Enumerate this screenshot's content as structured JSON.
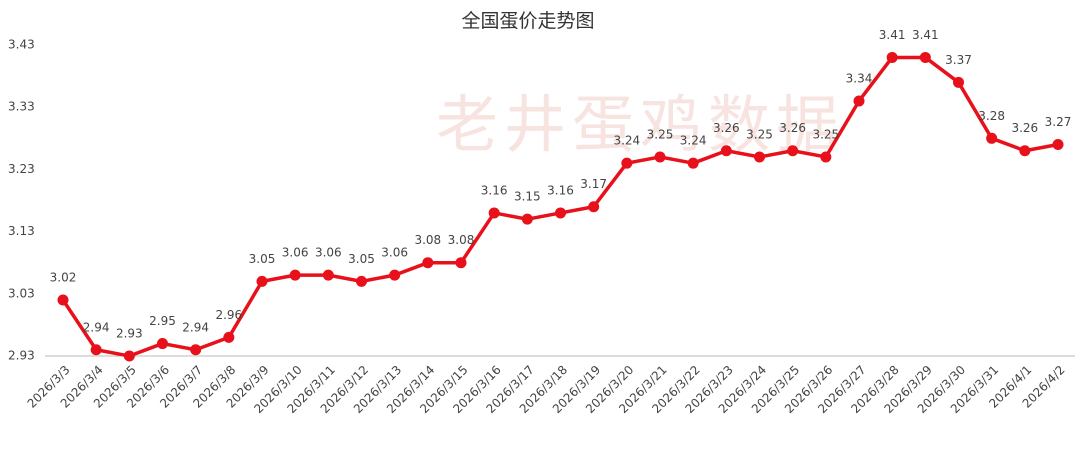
{
  "chart_data": {
    "type": "line",
    "title": "全国蛋价走势图",
    "watermark": "老井蛋鸡数据",
    "categories": [
      "2026/3/3",
      "2026/3/4",
      "2026/3/5",
      "2026/3/6",
      "2026/3/7",
      "2026/3/8",
      "2026/3/9",
      "2026/3/10",
      "2026/3/11",
      "2026/3/12",
      "2026/3/13",
      "2026/3/14",
      "2026/3/15",
      "2026/3/16",
      "2026/3/17",
      "2026/3/18",
      "2026/3/19",
      "2026/3/20",
      "2026/3/21",
      "2026/3/22",
      "2026/3/23",
      "2026/3/24",
      "2026/3/25",
      "2026/3/26",
      "2026/3/27",
      "2026/3/28",
      "2026/3/29",
      "2026/3/30",
      "2026/3/31",
      "2026/4/1",
      "2026/4/2"
    ],
    "values": [
      3.02,
      2.94,
      2.93,
      2.95,
      2.94,
      2.96,
      3.05,
      3.06,
      3.06,
      3.05,
      3.06,
      3.08,
      3.08,
      3.16,
      3.15,
      3.16,
      3.17,
      3.24,
      3.25,
      3.24,
      3.26,
      3.25,
      3.26,
      3.25,
      3.34,
      3.41,
      3.41,
      3.37,
      3.28,
      3.26,
      3.27
    ],
    "color": "#e8101a",
    "ylim": [
      2.93,
      3.43
    ],
    "yticks": [
      2.93,
      3.03,
      3.13,
      3.23,
      3.33,
      3.43
    ],
    "grid": false
  }
}
